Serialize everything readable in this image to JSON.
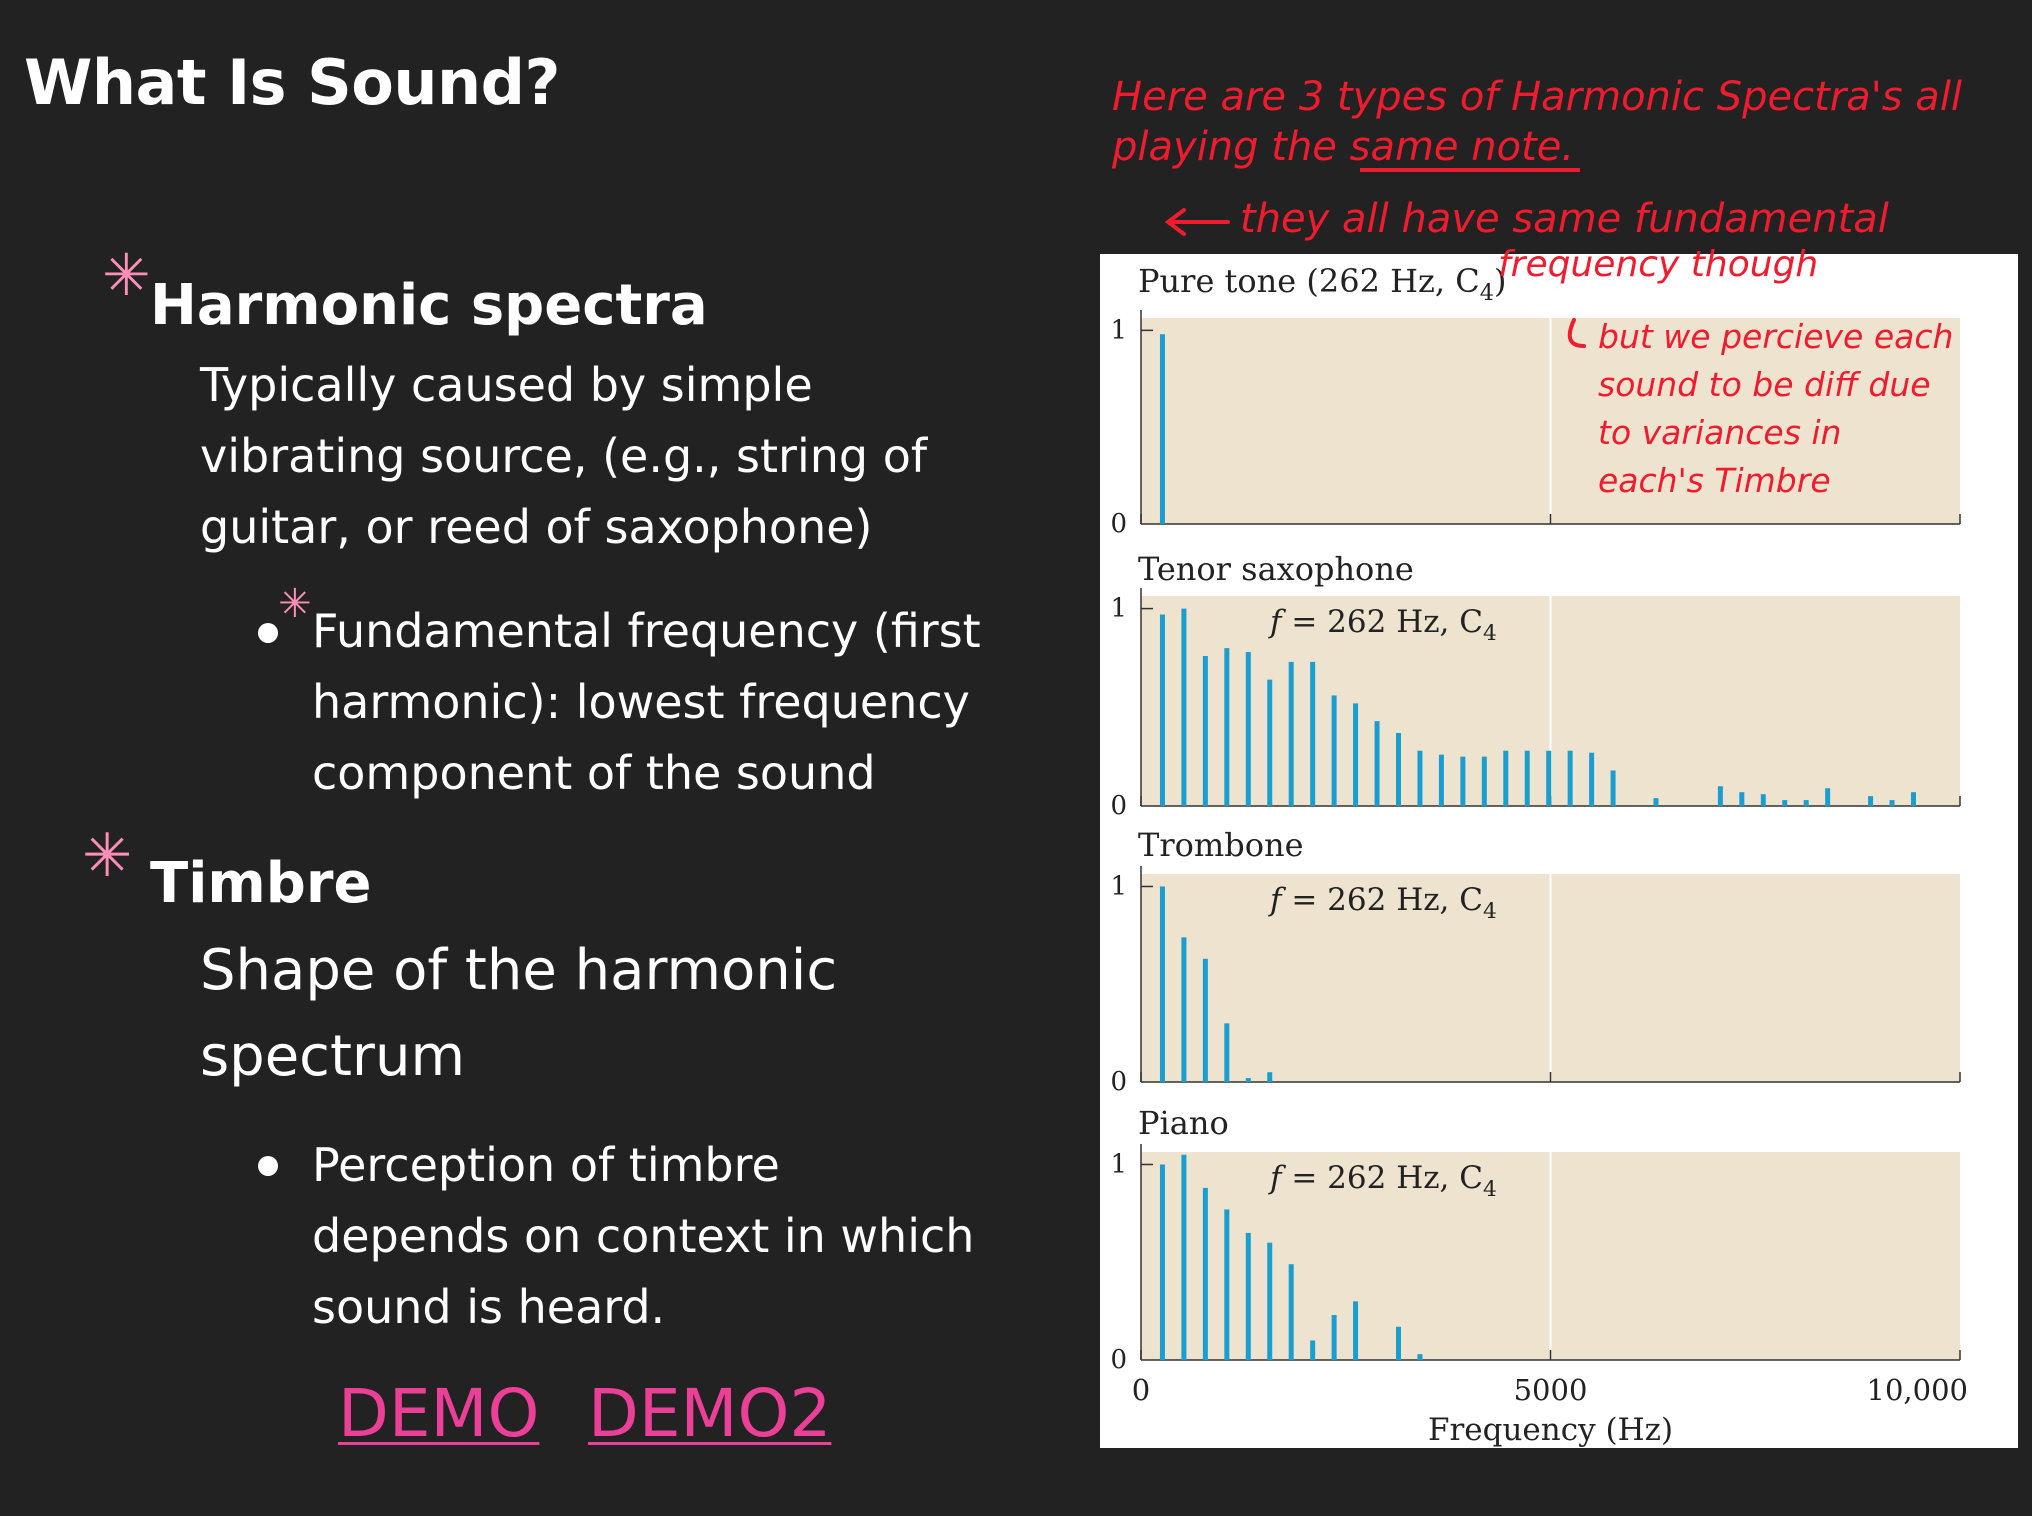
{
  "slide": {
    "title": "What Is Sound?",
    "section1": {
      "heading": "Harmonic spectra",
      "description_lines": [
        "Typically caused by simple",
        "vibrating source, (e.g., string of",
        "guitar, or reed of saxophone)"
      ],
      "bullet_lines": [
        "Fundamental frequency (first",
        "harmonic): lowest frequency",
        "component of the sound"
      ]
    },
    "section2": {
      "heading": "Timbre",
      "description_lines": [
        "Shape of the harmonic",
        "spectrum"
      ],
      "bullet_lines": [
        "Perception of timbre",
        "depends on context in which",
        "sound is heard."
      ]
    },
    "links": [
      {
        "label": "DEMO"
      },
      {
        "label": "DEMO2"
      }
    ],
    "colors": {
      "background": "#222222",
      "text": "#ffffff",
      "link": "#ec3f98",
      "asterisk": "#ff8fb8",
      "annotation": "#ee1c2e",
      "panel_background": "#ede3cf",
      "bar": "#1a9ed0"
    }
  },
  "chart_data": {
    "type": "bar",
    "xlabel": "Frequency (Hz)",
    "x_ticks": [
      {
        "value": 0,
        "label": "0"
      },
      {
        "value": 5000,
        "label": "5000"
      },
      {
        "value": 10000,
        "label": "10,000"
      }
    ],
    "xlim": [
      0,
      10000
    ],
    "ylim": [
      0,
      1
    ],
    "y_ticks": [
      "0",
      "1"
    ],
    "panels": [
      {
        "name": "Pure tone",
        "title": "Pure tone (262 Hz, C",
        "title_sub": "4",
        "title_end": ")",
        "freq_label": "",
        "freq_sub": "",
        "bars": [
          [
            262,
            0.98
          ]
        ]
      },
      {
        "name": "Tenor saxophone",
        "title": "Tenor saxophone",
        "title_sub": "",
        "title_end": "",
        "freq_label": "f = 262 Hz, C",
        "freq_sub": "4",
        "bars": [
          [
            262,
            0.97
          ],
          [
            524,
            1.0
          ],
          [
            786,
            0.76
          ],
          [
            1048,
            0.8
          ],
          [
            1310,
            0.78
          ],
          [
            1572,
            0.64
          ],
          [
            1834,
            0.73
          ],
          [
            2096,
            0.73
          ],
          [
            2358,
            0.56
          ],
          [
            2620,
            0.52
          ],
          [
            2882,
            0.43
          ],
          [
            3144,
            0.37
          ],
          [
            3406,
            0.28
          ],
          [
            3668,
            0.26
          ],
          [
            3930,
            0.25
          ],
          [
            4192,
            0.25
          ],
          [
            4454,
            0.28
          ],
          [
            4716,
            0.28
          ],
          [
            4978,
            0.28
          ],
          [
            5240,
            0.28
          ],
          [
            5502,
            0.27
          ],
          [
            5764,
            0.18
          ],
          [
            6288,
            0.04
          ],
          [
            7074,
            0.1
          ],
          [
            7336,
            0.07
          ],
          [
            7598,
            0.06
          ],
          [
            7860,
            0.03
          ],
          [
            8122,
            0.03
          ],
          [
            8384,
            0.09
          ],
          [
            8908,
            0.05
          ],
          [
            9170,
            0.03
          ],
          [
            9432,
            0.07
          ]
        ]
      },
      {
        "name": "Trombone",
        "title": "Trombone",
        "title_sub": "",
        "title_end": "",
        "freq_label": "f = 262 Hz, C",
        "freq_sub": "4",
        "bars": [
          [
            262,
            1.0
          ],
          [
            524,
            0.74
          ],
          [
            786,
            0.63
          ],
          [
            1048,
            0.3
          ],
          [
            1310,
            0.02
          ],
          [
            1572,
            0.05
          ]
        ]
      },
      {
        "name": "Piano",
        "title": "Piano",
        "title_sub": "",
        "title_end": "",
        "freq_label": "f = 262 Hz, C",
        "freq_sub": "4",
        "bars": [
          [
            262,
            1.0
          ],
          [
            524,
            1.05
          ],
          [
            786,
            0.88
          ],
          [
            1048,
            0.77
          ],
          [
            1310,
            0.65
          ],
          [
            1572,
            0.6
          ],
          [
            1834,
            0.49
          ],
          [
            2096,
            0.1
          ],
          [
            2358,
            0.23
          ],
          [
            2620,
            0.3
          ],
          [
            3144,
            0.17
          ],
          [
            3406,
            0.03
          ]
        ]
      }
    ]
  },
  "annotation": {
    "lines": [
      "Here are 3 types of Harmonic Spectra's all",
      "playing the same note."
    ],
    "underlined": "same note",
    "arrow_line": "they all have same fundamental",
    "arrow_line2": "frequency though",
    "side_lines": [
      "but we percieve each",
      "sound to be diff due",
      "to variances in",
      "each's Timbre"
    ]
  }
}
